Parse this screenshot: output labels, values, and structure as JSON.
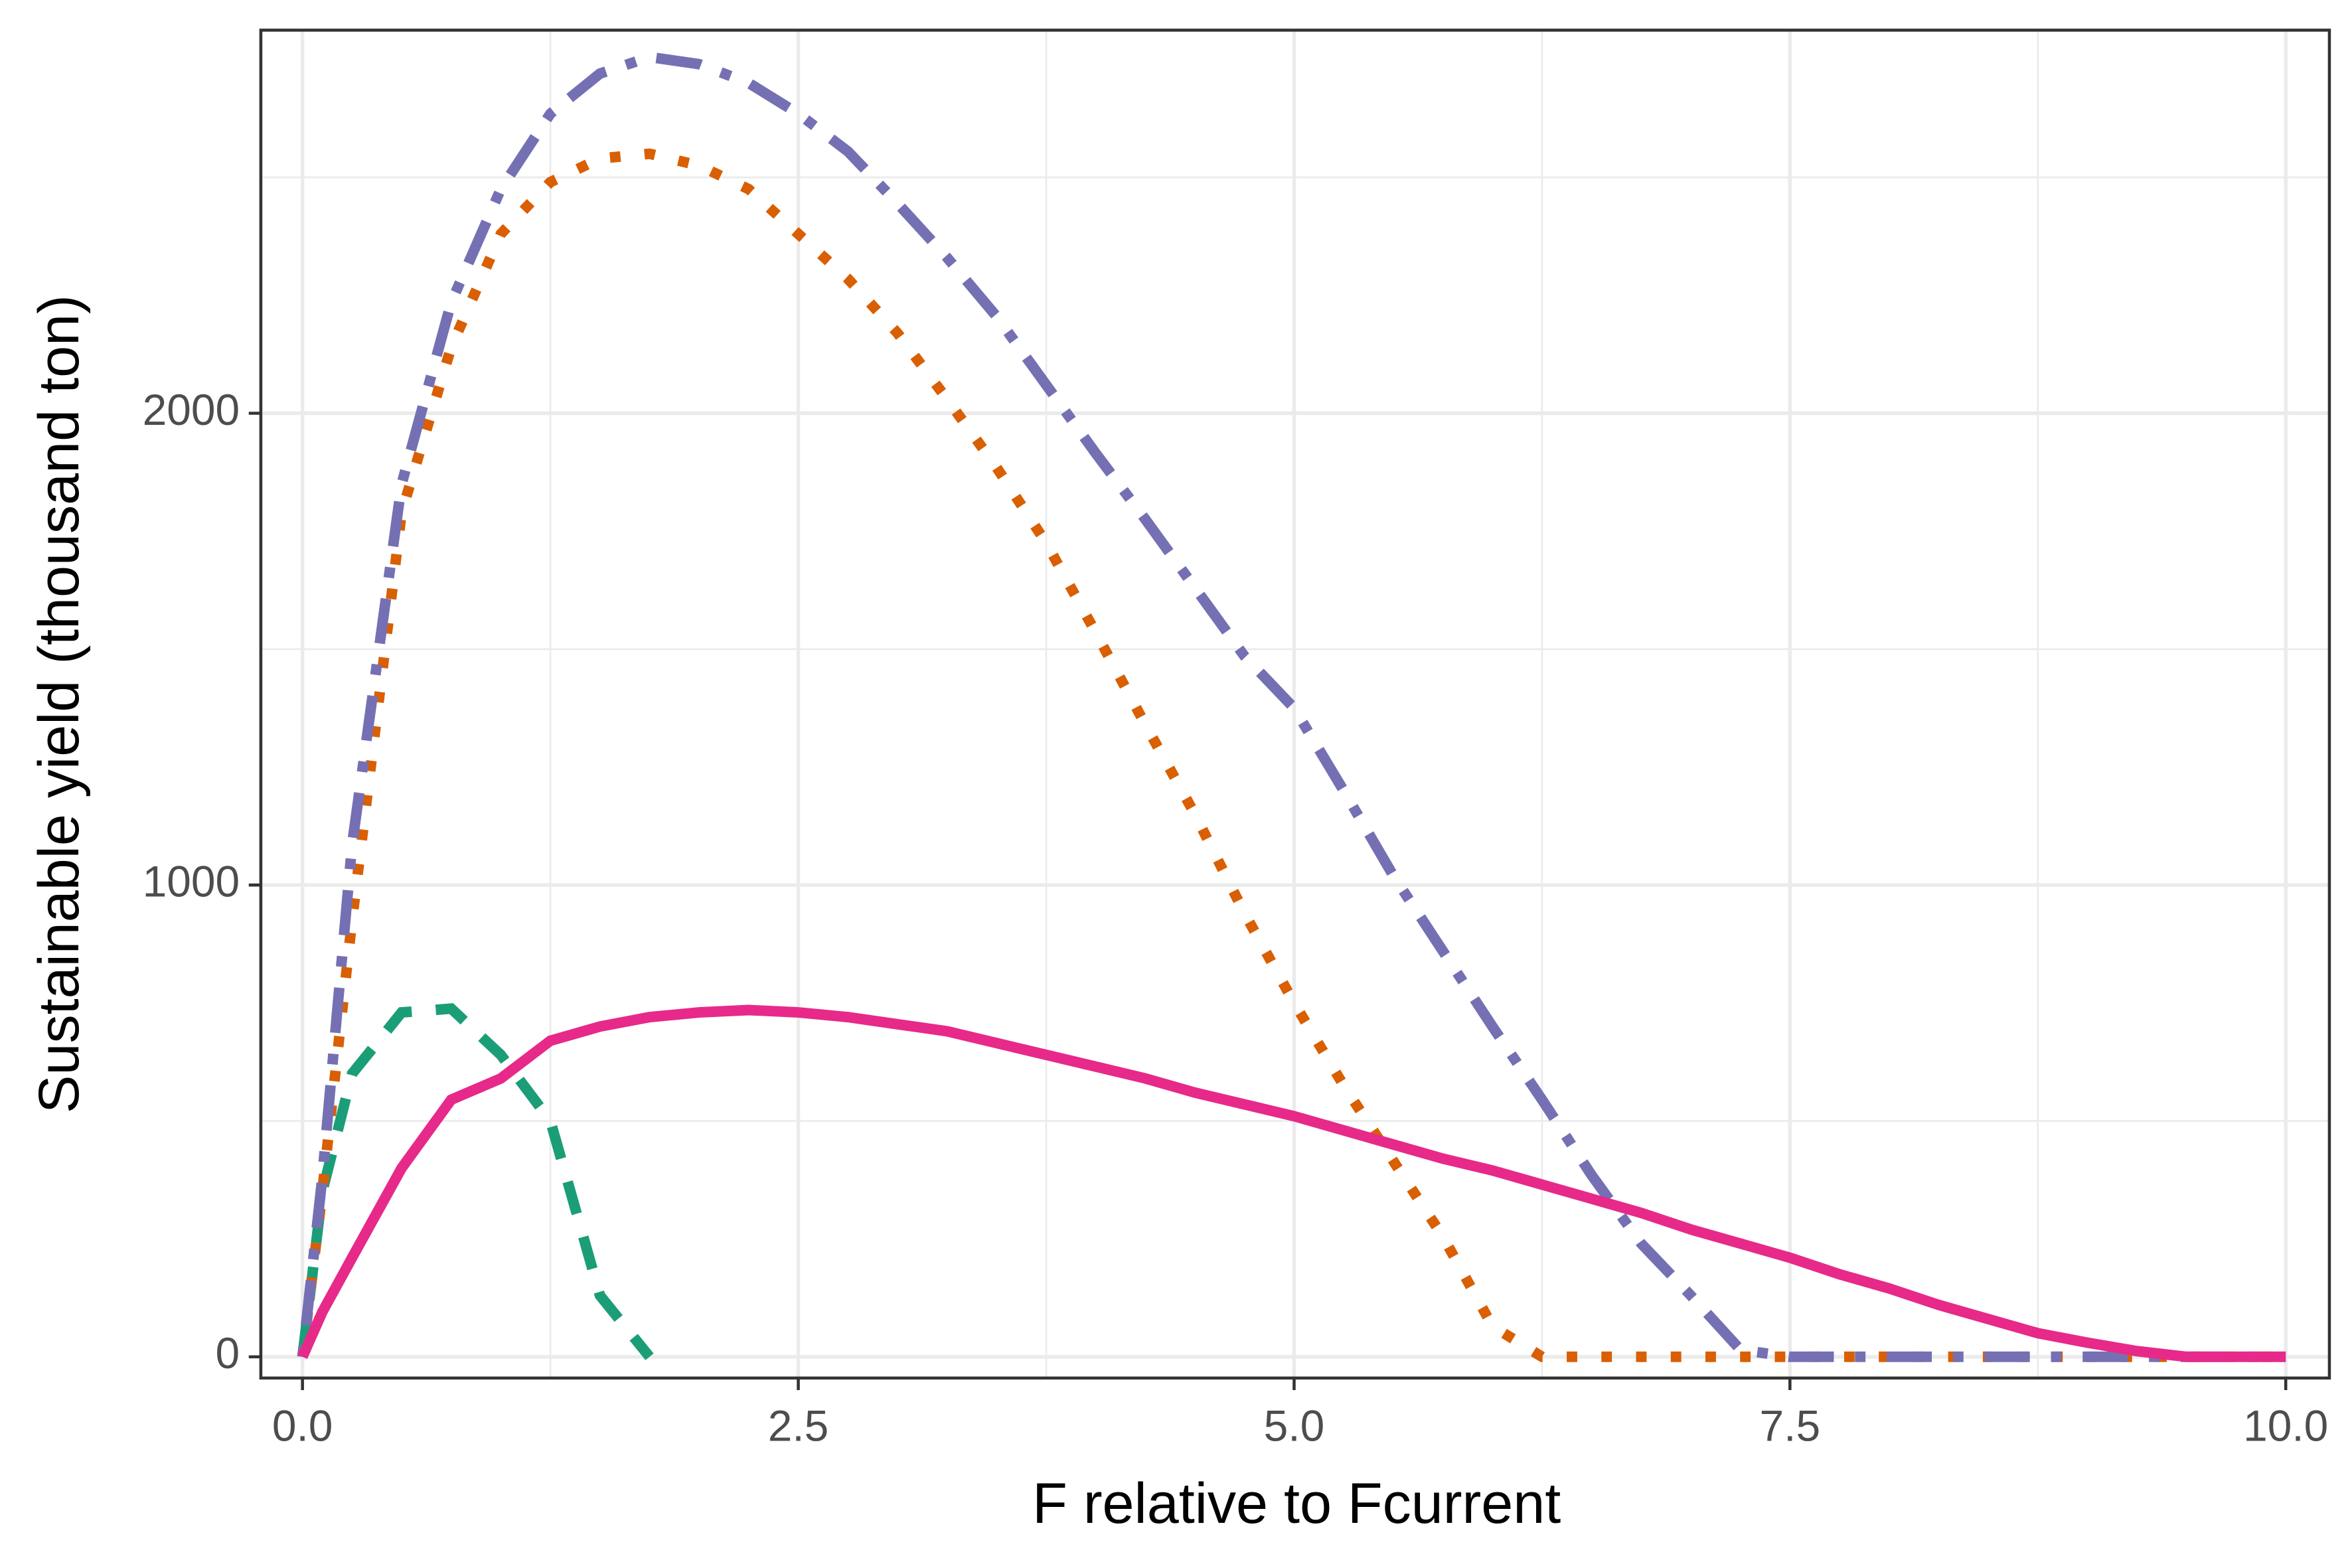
{
  "chart_data": {
    "type": "line",
    "x_label": "F relative to Fcurrent",
    "y_label": "Sustainable yield (thousand ton)",
    "x": [
      0,
      0.1,
      0.25,
      0.5,
      0.75,
      1.0,
      1.25,
      1.5,
      1.75,
      2.0,
      2.25,
      2.5,
      2.75,
      3.0,
      3.25,
      3.5,
      3.75,
      4.0,
      4.25,
      4.5,
      4.75,
      5.0,
      5.25,
      5.5,
      5.75,
      6.0,
      6.25,
      6.5,
      6.75,
      7.0,
      7.25,
      7.5,
      7.75,
      8.0,
      8.25,
      8.5,
      8.75,
      9.0,
      9.25,
      9.5,
      9.75,
      10.0
    ],
    "series": [
      {
        "color": "#1b9e77",
        "linestyle": "dashed",
        "values": [
          0,
          350,
          600,
          730,
          738,
          640,
          500,
          130,
          0,
          null,
          null,
          null,
          null,
          null,
          null,
          null,
          null,
          null,
          null,
          null,
          null,
          null,
          null,
          null,
          null,
          null,
          null,
          null,
          null,
          null,
          null,
          null,
          null,
          null,
          null,
          null,
          null,
          null,
          null,
          null,
          null,
          null
        ]
      },
      {
        "color": "#d95f02",
        "linestyle": "dotted",
        "values": [
          0,
          350,
          925,
          1790,
          2140,
          2380,
          2490,
          2540,
          2550,
          2525,
          2475,
          2380,
          2285,
          2170,
          2030,
          1885,
          1725,
          1535,
          1340,
          1150,
          940,
          750,
          575,
          415,
          255,
          65,
          0,
          0,
          0,
          0,
          0,
          0,
          0,
          0,
          0,
          0,
          0,
          0,
          0,
          0,
          0,
          0
        ]
      },
      {
        "color": "#7570b3",
        "linestyle": "dotdash",
        "values": [
          0,
          380,
          1085,
          1850,
          2235,
          2475,
          2635,
          2720,
          2755,
          2740,
          2700,
          2635,
          2555,
          2445,
          2330,
          2205,
          2060,
          1915,
          1775,
          1630,
          1485,
          1375,
          1200,
          1020,
          860,
          700,
          545,
          385,
          240,
          130,
          15,
          0,
          0,
          0,
          0,
          0,
          0,
          0,
          0,
          0,
          0,
          0
        ]
      },
      {
        "color": "#e7298a",
        "linestyle": "solid",
        "values": [
          0,
          95,
          210,
          400,
          545,
          590,
          670,
          700,
          720,
          730,
          735,
          730,
          720,
          705,
          690,
          665,
          640,
          615,
          590,
          560,
          535,
          510,
          480,
          450,
          420,
          395,
          365,
          335,
          305,
          270,
          240,
          210,
          175,
          145,
          110,
          80,
          50,
          30,
          12,
          0,
          0,
          0
        ]
      }
    ],
    "xlim": [
      -0.21,
      10.22
    ],
    "ylim": [
      -45,
      2812
    ],
    "xticks": [
      {
        "value": 0,
        "label": "0.0"
      },
      2.5,
      {
        "value": 5,
        "label": "5.0"
      },
      7.5,
      {
        "value": 10,
        "label": "10.0"
      }
    ],
    "yticks": [
      0,
      1000,
      2000
    ],
    "grid": true,
    "minor_grid": true
  }
}
